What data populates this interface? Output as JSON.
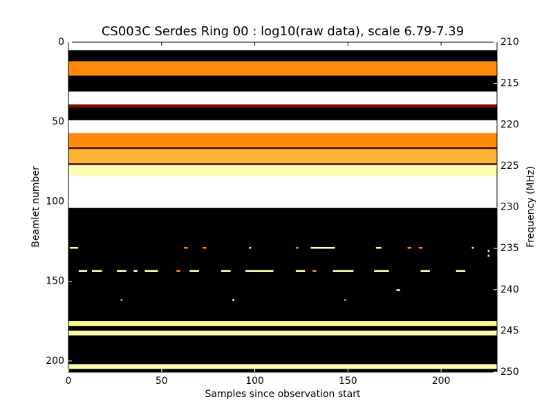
{
  "chart_data": {
    "type": "heatmap",
    "title": "CS003C Serdes Ring 00 : log10(raw data), scale 6.79-7.39",
    "x_label": "Samples since observation start",
    "y_label": "Beamlet number",
    "y2_label": "Frequency (MHz)",
    "colormap": "afmhot",
    "clim": [
      6.79,
      7.39
    ],
    "xlim": [
      0,
      230
    ],
    "xticks": [
      0,
      50,
      100,
      150,
      200
    ],
    "ylim": [
      0,
      207
    ],
    "yticks": [
      0,
      50,
      100,
      150,
      200
    ],
    "y_inverted": true,
    "y2lim": [
      210,
      250
    ],
    "y2ticks": [
      210,
      215,
      220,
      225,
      230,
      235,
      240,
      245,
      250
    ],
    "bands": [
      {
        "start": 0,
        "end": 5,
        "value": 7.39
      },
      {
        "start": 5,
        "end": 12,
        "value": 6.79
      },
      {
        "start": 12,
        "end": 21,
        "value": 7.1
      },
      {
        "start": 21,
        "end": 31,
        "value": 6.79
      },
      {
        "start": 31,
        "end": 39,
        "value": 7.39
      },
      {
        "start": 39,
        "end": 41,
        "value": 6.95
      },
      {
        "start": 41,
        "end": 49,
        "value": 6.79
      },
      {
        "start": 49,
        "end": 57,
        "value": 7.39
      },
      {
        "start": 57,
        "end": 66,
        "value": 7.1
      },
      {
        "start": 66,
        "end": 67,
        "value": 6.85
      },
      {
        "start": 67,
        "end": 76,
        "value": 7.15
      },
      {
        "start": 76,
        "end": 77,
        "value": 6.85
      },
      {
        "start": 77,
        "end": 84,
        "value": 7.3
      },
      {
        "start": 84,
        "end": 104,
        "value": 7.39
      },
      {
        "start": 104,
        "end": 175,
        "value": 6.79
      },
      {
        "start": 175,
        "end": 178,
        "value": 7.25
      },
      {
        "start": 178,
        "end": 181,
        "value": 6.79
      },
      {
        "start": 181,
        "end": 184,
        "value": 7.3
      },
      {
        "start": 184,
        "end": 202,
        "value": 6.79
      },
      {
        "start": 202,
        "end": 205,
        "value": 7.3
      },
      {
        "start": 205,
        "end": 207,
        "value": 6.79
      }
    ],
    "spots": [
      {
        "y": 129,
        "x0": 0.7,
        "x1": 5.2,
        "value": 7.3
      },
      {
        "y": 129,
        "x0": 62,
        "x1": 64,
        "value": 7.1
      },
      {
        "y": 129,
        "x0": 72,
        "x1": 74,
        "value": 7.1
      },
      {
        "y": 129,
        "x0": 97,
        "x1": 98,
        "value": 7.3
      },
      {
        "y": 129,
        "x0": 122,
        "x1": 123.5,
        "value": 7.1
      },
      {
        "y": 129,
        "x0": 130,
        "x1": 143,
        "value": 7.3
      },
      {
        "y": 129,
        "x0": 165,
        "x1": 168,
        "value": 7.3
      },
      {
        "y": 129,
        "x0": 182,
        "x1": 184,
        "value": 7.1
      },
      {
        "y": 129,
        "x0": 188,
        "x1": 190,
        "value": 7.1
      },
      {
        "y": 129,
        "x0": 216.5,
        "x1": 217.5,
        "value": 7.3
      },
      {
        "y": 131,
        "x0": 225,
        "x1": 226,
        "value": 7.3
      },
      {
        "y": 134,
        "x0": 225,
        "x1": 226,
        "value": 7.3
      },
      {
        "y": 143.5,
        "x0": 5.5,
        "x1": 10,
        "value": 7.3
      },
      {
        "y": 143.5,
        "x0": 12.6,
        "x1": 18,
        "value": 7.3
      },
      {
        "y": 143.5,
        "x0": 26,
        "x1": 31,
        "value": 7.3
      },
      {
        "y": 143.5,
        "x0": 35,
        "x1": 37,
        "value": 7.3
      },
      {
        "y": 143.5,
        "x0": 41,
        "x1": 48,
        "value": 7.3
      },
      {
        "y": 143.5,
        "x0": 58,
        "x1": 60,
        "value": 7.1
      },
      {
        "y": 143.5,
        "x0": 65,
        "x1": 70,
        "value": 7.3
      },
      {
        "y": 143.5,
        "x0": 82,
        "x1": 87,
        "value": 7.3
      },
      {
        "y": 143.5,
        "x0": 95,
        "x1": 110,
        "value": 7.3
      },
      {
        "y": 143.5,
        "x0": 122,
        "x1": 127,
        "value": 7.3
      },
      {
        "y": 143.5,
        "x0": 131,
        "x1": 133,
        "value": 7.1
      },
      {
        "y": 143.5,
        "x0": 142,
        "x1": 153,
        "value": 7.3
      },
      {
        "y": 143.5,
        "x0": 164,
        "x1": 172,
        "value": 7.3
      },
      {
        "y": 143.5,
        "x0": 189,
        "x1": 194,
        "value": 7.3
      },
      {
        "y": 143.5,
        "x0": 208,
        "x1": 213,
        "value": 7.3
      },
      {
        "y": 155.6,
        "x0": 176,
        "x1": 178,
        "value": 7.3
      },
      {
        "y": 161.7,
        "x0": 28,
        "x1": 29,
        "value": 7.1
      },
      {
        "y": 161.7,
        "x0": 88,
        "x1": 89,
        "value": 7.3
      },
      {
        "y": 161.7,
        "x0": 148,
        "x1": 149,
        "value": 7.1
      }
    ]
  }
}
